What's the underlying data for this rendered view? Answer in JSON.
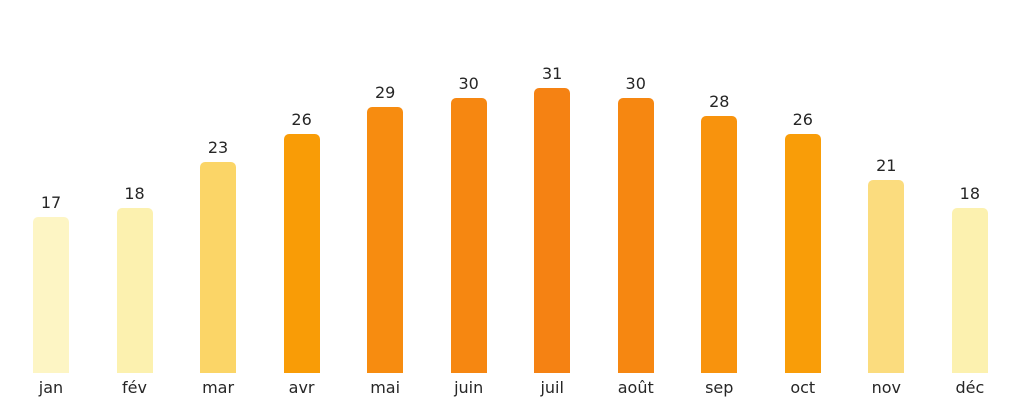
{
  "chart_data": {
    "type": "bar",
    "title": "",
    "xlabel": "",
    "ylabel": "",
    "categories": [
      "jan",
      "fév",
      "mar",
      "avr",
      "mai",
      "juin",
      "juil",
      "août",
      "sep",
      "oct",
      "nov",
      "déc"
    ],
    "values": [
      17,
      18,
      23,
      26,
      29,
      30,
      31,
      30,
      28,
      26,
      21,
      18
    ],
    "value_labels": [
      "17",
      "18",
      "23",
      "26",
      "29",
      "30",
      "31",
      "30",
      "28",
      "26",
      "21",
      "18"
    ],
    "bar_colors": [
      "#FDF5C4",
      "#FCF1AF",
      "#FBD567",
      "#F99C06",
      "#F78C10",
      "#F68711",
      "#F58213",
      "#F68711",
      "#F8930D",
      "#F99D08",
      "#FBDC7E",
      "#FCF1AF"
    ],
    "ylim": [
      0,
      40
    ],
    "grid": false,
    "legend": "none",
    "axes_shown": false,
    "background": "#FFFFFF",
    "text_color": "#262626"
  }
}
